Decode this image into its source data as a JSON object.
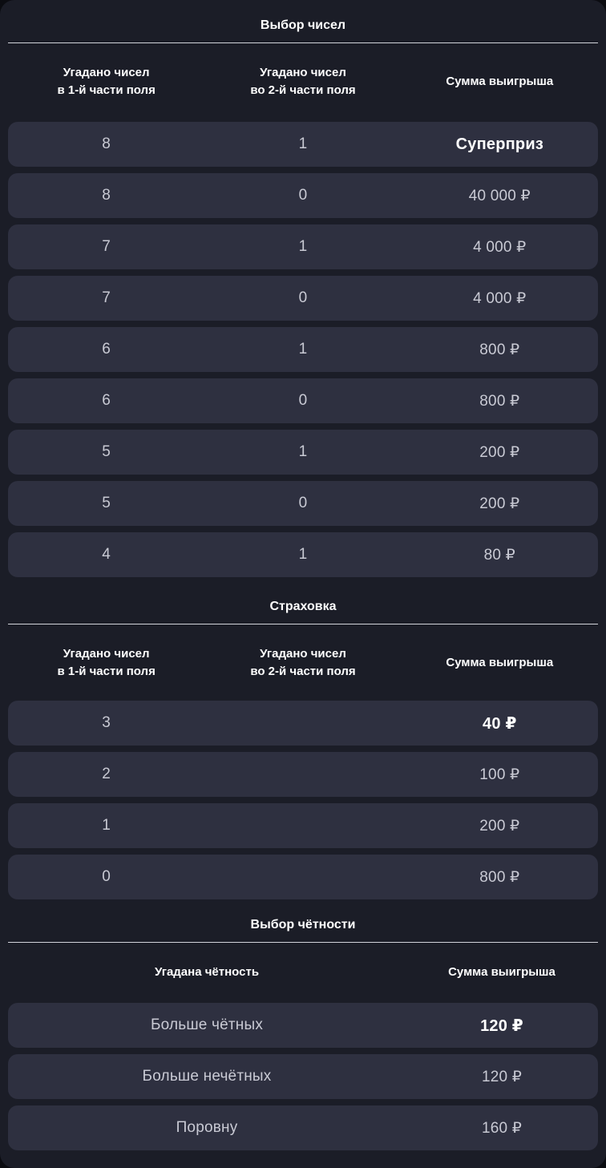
{
  "theme": {
    "page_bg": "#0b0c11",
    "card_bg": "#1b1d27",
    "row_bg": "#2e3040",
    "divider": "#d2d3da",
    "text_primary": "#ffffff",
    "text_secondary": "#c9cad4"
  },
  "sections": [
    {
      "title": "Выбор чисел",
      "columns": [
        "Угадано чисел\nв 1-й части поля",
        "Угадано чисел\nво 2-й части поля",
        "Сумма выигрыша"
      ],
      "rows": [
        {
          "c1": "8",
          "c2": "1",
          "prize": "Суперприз",
          "highlight": true
        },
        {
          "c1": "8",
          "c2": "0",
          "prize": "40 000 ₽"
        },
        {
          "c1": "7",
          "c2": "1",
          "prize": "4 000 ₽"
        },
        {
          "c1": "7",
          "c2": "0",
          "prize": "4 000 ₽"
        },
        {
          "c1": "6",
          "c2": "1",
          "prize": "800 ₽"
        },
        {
          "c1": "6",
          "c2": "0",
          "prize": "800 ₽"
        },
        {
          "c1": "5",
          "c2": "1",
          "prize": "200 ₽"
        },
        {
          "c1": "5",
          "c2": "0",
          "prize": "200 ₽"
        },
        {
          "c1": "4",
          "c2": "1",
          "prize": "80 ₽"
        }
      ]
    },
    {
      "title": "Страховка",
      "columns": [
        "Угадано чисел\nв 1-й части поля",
        "Угадано чисел\nво 2-й части поля",
        "Сумма выигрыша"
      ],
      "rows": [
        {
          "c1": "3",
          "c2": "",
          "prize": "40 ₽",
          "highlight": true
        },
        {
          "c1": "2",
          "c2": "",
          "prize": "100 ₽"
        },
        {
          "c1": "1",
          "c2": "",
          "prize": "200 ₽"
        },
        {
          "c1": "0",
          "c2": "",
          "prize": "800 ₽"
        }
      ]
    },
    {
      "title": "Выбор чётности",
      "columns": [
        "Угадана чётность",
        "Сумма выигрыша"
      ],
      "rows": [
        {
          "label": "Больше чётных",
          "prize": "120 ₽",
          "highlight": true
        },
        {
          "label": "Больше нечётных",
          "prize": "120 ₽"
        },
        {
          "label": "Поровну",
          "prize": "160 ₽"
        }
      ]
    }
  ]
}
